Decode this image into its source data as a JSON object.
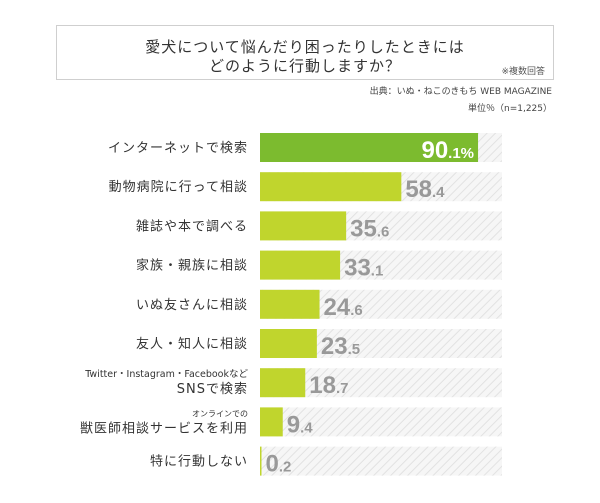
{
  "header": {
    "title_line1": "愛犬について悩んだり困ったりしたときには",
    "title_line2": "どのように行動しますか？",
    "note": "※複数回答",
    "source": "出典：いぬ・ねこのきもち WEB MAGAZINE",
    "unit": "単位％（n=1,225）"
  },
  "chart_data": {
    "type": "bar",
    "orientation": "horizontal",
    "xlim": [
      0,
      100
    ],
    "unit": "%",
    "title": "愛犬について悩んだり困ったりしたときにはどのように行動しますか？",
    "categories": [
      {
        "label": "インターネットで検索",
        "sub": ""
      },
      {
        "label": "動物病院に行って相談",
        "sub": ""
      },
      {
        "label": "雑誌や本で調べる",
        "sub": ""
      },
      {
        "label": "家族・親族に相談",
        "sub": ""
      },
      {
        "label": "いぬ友さんに相談",
        "sub": ""
      },
      {
        "label": "友人・知人に相談",
        "sub": ""
      },
      {
        "label": "SNSで検索",
        "sub": "Twitter・Instagram・Facebookなど"
      },
      {
        "label": "獣医師相談サービスを利用",
        "sub": "オンラインでの"
      },
      {
        "label": "特に行動しない",
        "sub": ""
      }
    ],
    "values": [
      90.1,
      58.4,
      35.6,
      33.1,
      24.6,
      23.5,
      18.7,
      9.4,
      0.2
    ],
    "colors": {
      "top": "#7cbb2f",
      "bar": "#c0d52d",
      "label": "#999999",
      "top_label": "#ffffff",
      "track": "#efefef"
    }
  }
}
